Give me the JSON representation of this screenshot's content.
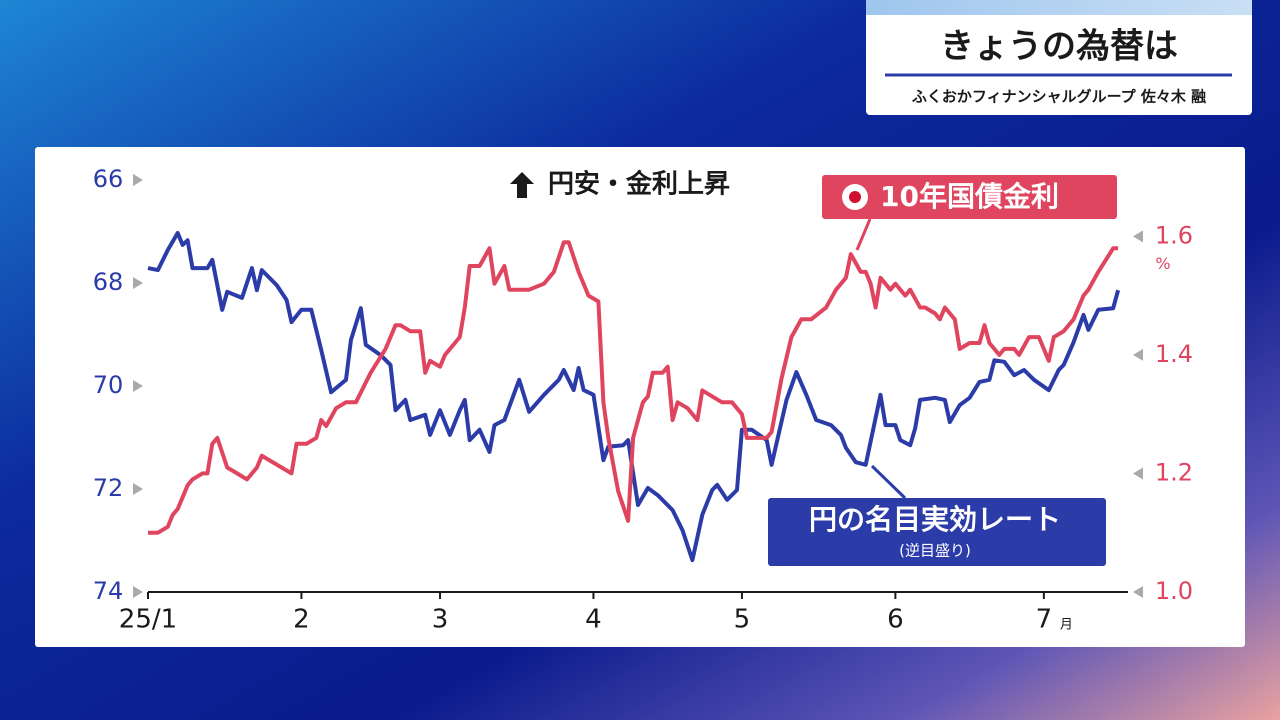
{
  "header": {
    "title": "きょうの為替は",
    "subtitle": "ふくおかフィナンシャルグループ 佐々木 融"
  },
  "chart_data": {
    "type": "line",
    "annotation": "円安・金利上昇",
    "inverted_note": "(逆目盛り)",
    "x_unit": "月",
    "y2_label": "%",
    "xlim": [
      0,
      198
    ],
    "xticks": [
      {
        "value": 0,
        "label": "25/1"
      },
      {
        "value": 31,
        "label": "2"
      },
      {
        "value": 59,
        "label": "3"
      },
      {
        "value": 90,
        "label": "4"
      },
      {
        "value": 120,
        "label": "5"
      },
      {
        "value": 151,
        "label": "6"
      },
      {
        "value": 181,
        "label": "7"
      }
    ],
    "ylim": [
      74,
      66
    ],
    "yticks": [
      66,
      68,
      70,
      72,
      74
    ],
    "y2lim": [
      1.0,
      1.695
    ],
    "y2ticks": [
      {
        "value": 1,
        "label": "1.0"
      },
      1.2,
      1.4,
      1.6
    ],
    "grid": false,
    "series": [
      {
        "name": "円の名目実効レート",
        "color": "#2b3ba8",
        "axis": "y",
        "x": [
          0,
          2,
          4,
          6,
          7,
          8,
          9,
          12,
          13,
          15,
          16,
          19,
          21,
          22,
          23,
          26,
          28,
          29,
          31,
          33,
          35,
          37,
          40,
          41,
          43,
          44,
          47,
          49,
          50,
          52,
          53,
          56,
          57,
          59,
          61,
          63,
          64,
          65,
          67,
          69,
          70,
          72,
          75,
          77,
          80,
          83,
          84,
          86,
          87,
          88,
          90,
          92,
          93,
          96,
          97,
          99,
          101,
          103,
          106,
          108,
          110,
          112,
          114,
          115,
          117,
          119,
          120,
          122,
          125,
          126,
          129,
          131,
          133,
          135,
          138,
          140,
          141,
          143,
          145,
          148,
          149,
          151,
          152,
          154,
          155,
          156,
          159,
          161,
          162,
          164,
          166,
          168,
          170,
          171,
          173,
          175,
          177,
          179,
          182,
          184,
          185,
          187,
          189,
          190,
          192,
          195,
          196
        ],
        "values": [
          67.71,
          67.75,
          67.36,
          67.03,
          67.26,
          67.17,
          67.71,
          67.71,
          67.55,
          68.52,
          68.17,
          68.29,
          67.71,
          68.14,
          67.75,
          68.04,
          68.33,
          68.76,
          68.52,
          68.52,
          69.3,
          70.12,
          69.88,
          69.11,
          68.49,
          69.2,
          69.4,
          69.59,
          70.47,
          70.27,
          70.66,
          70.56,
          70.95,
          70.47,
          70.95,
          70.47,
          70.27,
          71.05,
          70.85,
          71.28,
          70.76,
          70.66,
          69.88,
          70.5,
          70.17,
          69.88,
          69.69,
          70.08,
          69.65,
          70.08,
          70.17,
          71.44,
          71.18,
          71.15,
          71.05,
          72.31,
          71.98,
          72.12,
          72.41,
          72.8,
          73.38,
          72.5,
          72.02,
          71.92,
          72.21,
          72.02,
          70.85,
          70.85,
          71.05,
          71.53,
          70.27,
          69.73,
          70.17,
          70.66,
          70.76,
          70.95,
          71.2,
          71.48,
          71.53,
          70.17,
          70.76,
          70.76,
          71.05,
          71.15,
          70.82,
          70.27,
          70.23,
          70.27,
          70.7,
          70.37,
          70.23,
          69.92,
          69.88,
          69.5,
          69.53,
          69.79,
          69.69,
          69.88,
          70.08,
          69.69,
          69.59,
          69.15,
          68.62,
          68.91,
          68.52,
          68.49,
          68.14
        ]
      },
      {
        "name": "10年国債金利",
        "color": "#e0455f",
        "axis": "y2",
        "x": [
          0,
          2,
          4,
          5,
          6,
          8,
          9,
          11,
          12,
          13,
          14,
          16,
          18,
          20,
          22,
          23,
          25,
          27,
          29,
          30,
          32,
          34,
          35,
          36,
          38,
          40,
          42,
          45,
          48,
          50,
          51,
          53,
          55,
          56,
          57,
          59,
          60,
          63,
          64,
          65,
          67,
          69,
          70,
          72,
          73,
          75,
          77,
          80,
          82,
          84,
          85,
          87,
          89,
          91,
          92,
          93,
          95,
          97,
          98,
          99,
          100,
          101,
          102,
          104,
          105,
          106,
          107,
          109,
          111,
          112,
          114,
          116,
          118,
          120,
          121,
          123,
          125,
          126,
          128,
          130,
          132,
          134,
          137,
          139,
          141,
          142,
          144,
          145,
          146,
          147,
          148,
          150,
          151,
          153,
          154,
          156,
          157,
          159,
          160,
          161,
          163,
          164,
          166,
          168,
          169,
          170,
          172,
          173,
          175,
          176,
          178,
          180,
          182,
          183,
          185,
          187,
          189,
          190,
          192,
          195,
          196
        ],
        "values": [
          1.1,
          1.1,
          1.11,
          1.13,
          1.14,
          1.18,
          1.19,
          1.2,
          1.2,
          1.25,
          1.26,
          1.21,
          1.2,
          1.19,
          1.21,
          1.23,
          1.22,
          1.21,
          1.2,
          1.25,
          1.25,
          1.26,
          1.29,
          1.28,
          1.31,
          1.32,
          1.32,
          1.37,
          1.41,
          1.45,
          1.45,
          1.44,
          1.44,
          1.37,
          1.39,
          1.38,
          1.4,
          1.43,
          1.48,
          1.55,
          1.55,
          1.58,
          1.52,
          1.55,
          1.51,
          1.51,
          1.51,
          1.52,
          1.54,
          1.59,
          1.59,
          1.54,
          1.5,
          1.49,
          1.32,
          1.26,
          1.17,
          1.12,
          1.26,
          1.29,
          1.32,
          1.33,
          1.37,
          1.37,
          1.38,
          1.29,
          1.32,
          1.31,
          1.29,
          1.34,
          1.33,
          1.32,
          1.32,
          1.3,
          1.26,
          1.26,
          1.26,
          1.27,
          1.36,
          1.43,
          1.46,
          1.46,
          1.48,
          1.51,
          1.53,
          1.57,
          1.54,
          1.54,
          1.52,
          1.48,
          1.53,
          1.51,
          1.52,
          1.5,
          1.51,
          1.48,
          1.48,
          1.47,
          1.46,
          1.48,
          1.46,
          1.41,
          1.42,
          1.42,
          1.45,
          1.42,
          1.4,
          1.41,
          1.41,
          1.4,
          1.43,
          1.43,
          1.39,
          1.43,
          1.44,
          1.46,
          1.5,
          1.51,
          1.54,
          1.58,
          1.58
        ]
      }
    ]
  }
}
